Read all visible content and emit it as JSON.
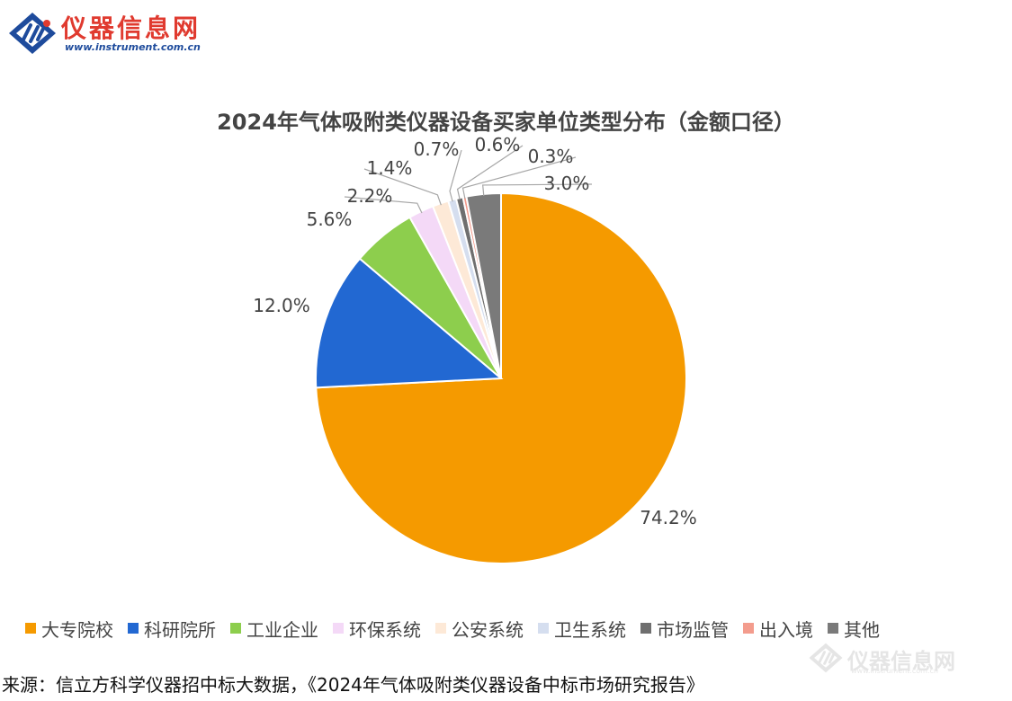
{
  "logo": {
    "name": "仪器信息网",
    "url": "www.instrument.com.cn"
  },
  "colors": {
    "brand_red": "#e03a2f",
    "brand_blue": "#1e4b9c"
  },
  "chart_data": {
    "type": "pie",
    "title": "2024年气体吸附类仪器设备买家单位类型分布（金额口径）",
    "start": "12 o'clock, clockwise",
    "categories": [
      "大专院校",
      "科研院所",
      "工业企业",
      "环保系统",
      "公安系统",
      "卫生系统",
      "市场监管",
      "出入境",
      "其他"
    ],
    "values": [
      74.2,
      12.0,
      5.6,
      2.2,
      1.4,
      0.7,
      0.6,
      0.3,
      3.0
    ],
    "labels": [
      "74.2%",
      "12.0%",
      "5.6%",
      "2.2%",
      "1.4%",
      "0.7%",
      "0.6%",
      "0.3%",
      "3.0%"
    ],
    "colors": [
      "#f59a00",
      "#2268d2",
      "#8dce4d",
      "#f4d9f7",
      "#fde9d7",
      "#d5deef",
      "#6f6f6f",
      "#f39c8d",
      "#7a7a7a"
    ],
    "legend_position": "bottom"
  },
  "source": "来源：信立方科学仪器招中标大数据，《2024年气体吸附类仪器设备中标市场研究报告》",
  "watermark": {
    "name": "仪器信息网",
    "url": "www.instrument.com.cn"
  }
}
